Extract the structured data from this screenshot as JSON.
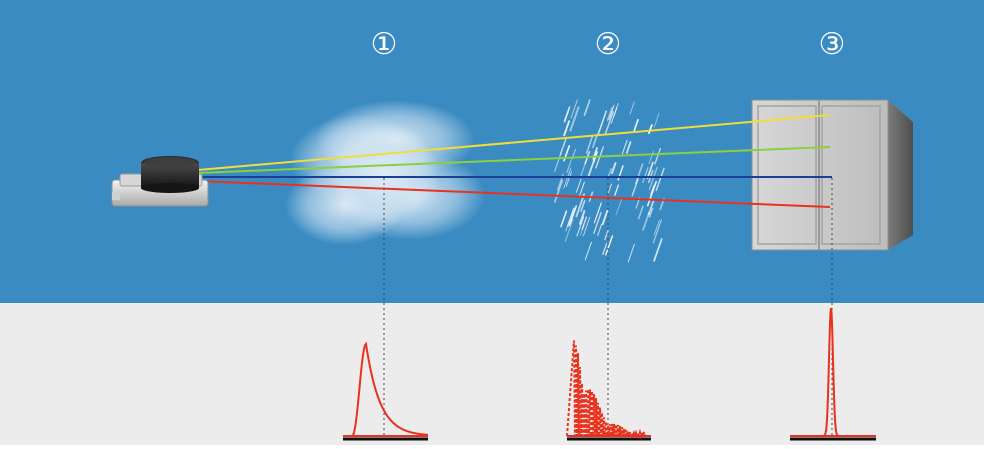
{
  "markers": [
    "①",
    "②",
    "③"
  ],
  "scene": {
    "beams": [
      {
        "name": "beam-yellow",
        "color": "#f1dd3a"
      },
      {
        "name": "beam-green",
        "color": "#8ccf3f"
      },
      {
        "name": "beam-blue",
        "color": "#1c3f96"
      },
      {
        "name": "beam-red",
        "color": "#e8321e"
      }
    ],
    "sky_color": "#3a8bc2",
    "ground_color": "#ececec",
    "pulse_color": "#e8321e",
    "baseline_color": "#111111"
  }
}
